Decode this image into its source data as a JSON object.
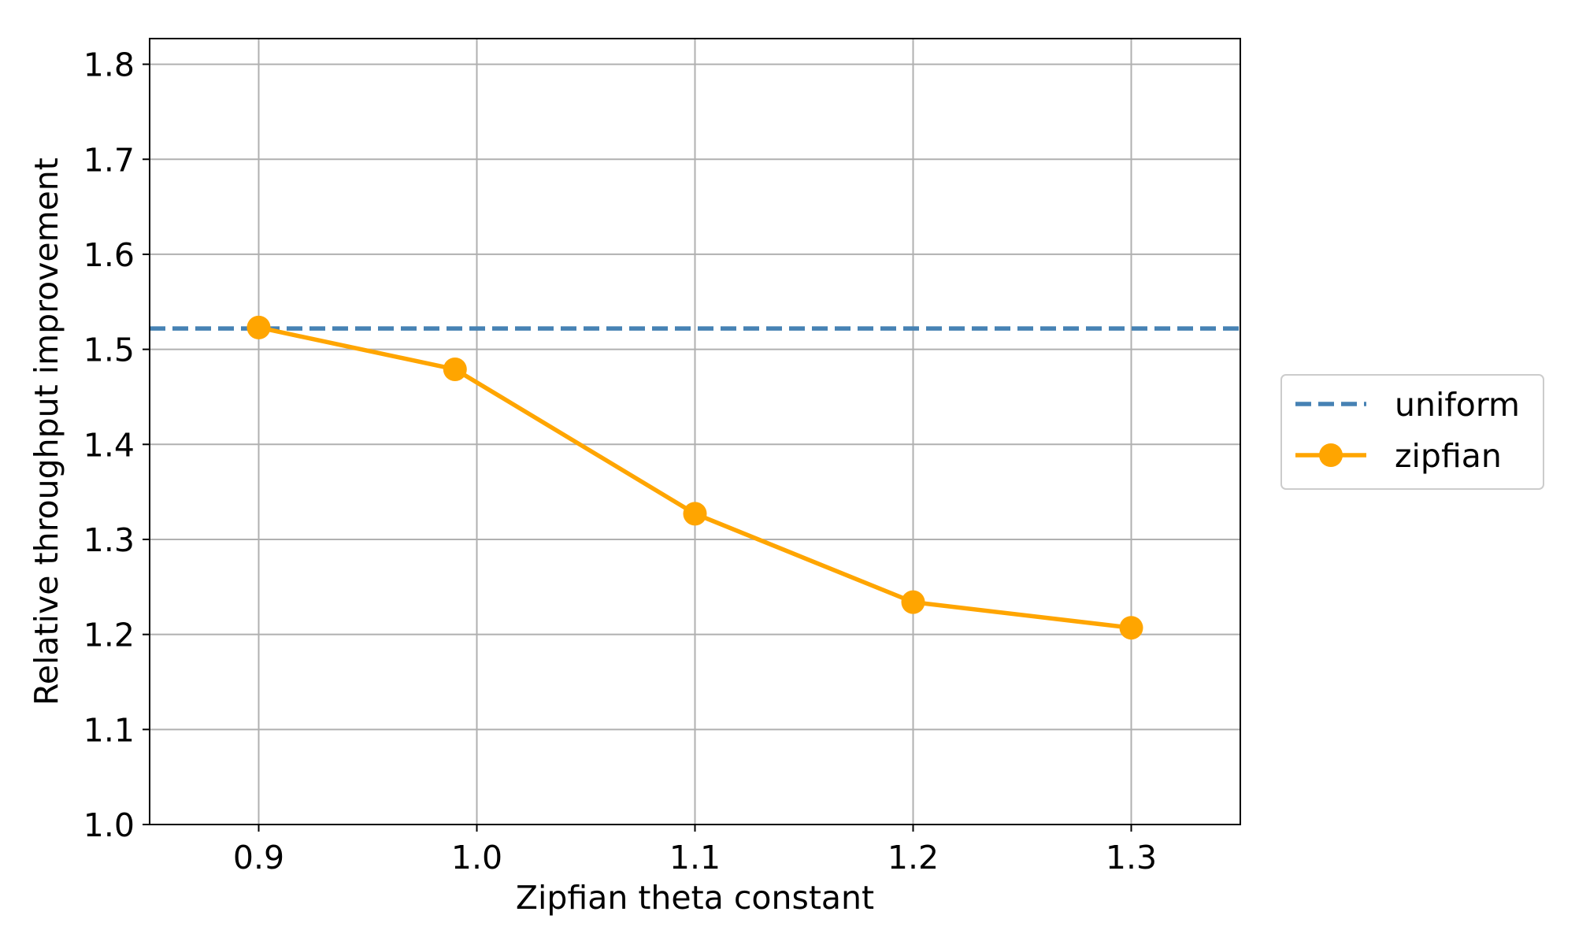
{
  "chart_data": {
    "type": "line",
    "xlabel": "Zipfian theta constant",
    "ylabel": "Relative throughput improvement",
    "xlim": [
      0.85,
      1.35
    ],
    "ylim": [
      1.0,
      1.827
    ],
    "x_ticks": [
      0.9,
      1.0,
      1.1,
      1.2,
      1.3
    ],
    "x_tick_labels": [
      "0.9",
      "1.0",
      "1.1",
      "1.2",
      "1.3"
    ],
    "y_ticks": [
      1.0,
      1.1,
      1.2,
      1.3,
      1.4,
      1.5,
      1.6,
      1.7,
      1.8
    ],
    "y_tick_labels": [
      "1.0",
      "1.1",
      "1.2",
      "1.3",
      "1.4",
      "1.5",
      "1.6",
      "1.7",
      "1.8"
    ],
    "grid": true,
    "legend_position": "outside-right",
    "series": [
      {
        "name": "uniform",
        "style": "dashed",
        "color": "#4682b4",
        "marker": "none",
        "y_constant": 1.522
      },
      {
        "name": "zipfian",
        "style": "solid",
        "color": "#ffa500",
        "marker": "circle",
        "x": [
          0.9,
          0.99,
          1.1,
          1.2,
          1.3
        ],
        "y": [
          1.523,
          1.479,
          1.327,
          1.234,
          1.207
        ]
      }
    ]
  }
}
